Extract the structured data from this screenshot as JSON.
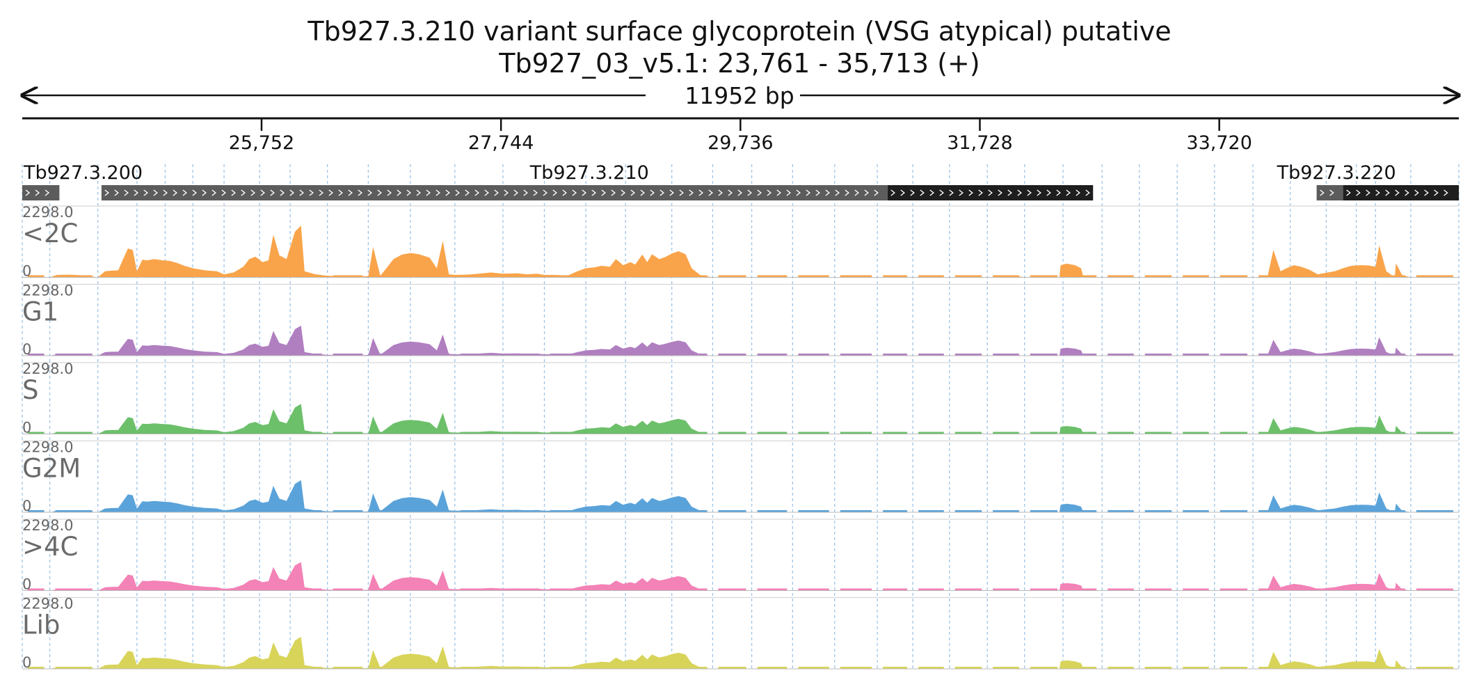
{
  "chart_data": {
    "type": "area",
    "title": "Tb927.3.210  variant surface glycoprotein (VSG  atypical)  putative",
    "subtitle": "Tb927_03_v5.1: 23,761 - 35,713 (+)",
    "span_label": "11952 bp",
    "x_range": [
      23761,
      35713
    ],
    "ticks": [
      {
        "value": 25752,
        "label": "25,752"
      },
      {
        "value": 27744,
        "label": "27,744"
      },
      {
        "value": 29736,
        "label": "29,736"
      },
      {
        "value": 31728,
        "label": "31,728"
      },
      {
        "value": 33720,
        "label": "33,720"
      }
    ],
    "genes": [
      {
        "name": "Tb927.3.200",
        "label_at": 23761,
        "segments": [
          {
            "start": 23761,
            "end": 24070,
            "kind": "utr"
          }
        ]
      },
      {
        "name": "Tb927.3.210",
        "label_at": 28480,
        "segments": [
          {
            "start": 24420,
            "end": 30960,
            "kind": "utr"
          },
          {
            "start": 30960,
            "end": 32670,
            "kind": "cds"
          }
        ]
      },
      {
        "name": "Tb927.3.220",
        "label_at": 34695,
        "segments": [
          {
            "start": 34530,
            "end": 34750,
            "kind": "utr"
          },
          {
            "start": 34750,
            "end": 35713,
            "kind": "cds"
          }
        ]
      }
    ],
    "ymax_label": "2298.0",
    "ymin_label": "0",
    "ylim": [
      0,
      2298
    ],
    "block_boundaries": [
      23761,
      23990,
      24390,
      24715,
      24950,
      25180,
      25440,
      25735,
      25990,
      26300,
      26640,
      26990,
      27360,
      27760,
      28105,
      28450,
      28780,
      29165,
      29505,
      29830,
      30170,
      30520,
      30875,
      31170,
      31475,
      31790,
      32100,
      32420,
      32745,
      33055,
      33370,
      33680,
      34000,
      34310,
      34610,
      34860,
      35020,
      35313,
      35713
    ],
    "profile": [
      [
        23761,
        0
      ],
      [
        23990,
        0
      ],
      [
        24050,
        80
      ],
      [
        24150,
        90
      ],
      [
        24240,
        70
      ],
      [
        24310,
        50
      ],
      [
        24390,
        0
      ],
      [
        24450,
        200
      ],
      [
        24500,
        220
      ],
      [
        24560,
        230
      ],
      [
        24600,
        600
      ],
      [
        24640,
        950
      ],
      [
        24680,
        900
      ],
      [
        24715,
        200
      ],
      [
        24760,
        580
      ],
      [
        24800,
        560
      ],
      [
        24860,
        600
      ],
      [
        24930,
        560
      ],
      [
        24990,
        540
      ],
      [
        25050,
        470
      ],
      [
        25110,
        380
      ],
      [
        25180,
        300
      ],
      [
        25280,
        230
      ],
      [
        25380,
        200
      ],
      [
        25440,
        100
      ],
      [
        25520,
        160
      ],
      [
        25600,
        350
      ],
      [
        25650,
        600
      ],
      [
        25700,
        680
      ],
      [
        25760,
        500
      ],
      [
        25810,
        560
      ],
      [
        25850,
        1400
      ],
      [
        25900,
        720
      ],
      [
        25960,
        600
      ],
      [
        26030,
        1500
      ],
      [
        26080,
        1700
      ],
      [
        26110,
        200
      ],
      [
        26200,
        100
      ],
      [
        26300,
        50
      ],
      [
        26400,
        40
      ],
      [
        26480,
        30
      ],
      [
        26640,
        40
      ],
      [
        26680,
        1000
      ],
      [
        26740,
        50
      ],
      [
        26800,
        350
      ],
      [
        26850,
        600
      ],
      [
        26920,
        750
      ],
      [
        26990,
        800
      ],
      [
        27060,
        760
      ],
      [
        27150,
        650
      ],
      [
        27210,
        300
      ],
      [
        27260,
        1200
      ],
      [
        27310,
        100
      ],
      [
        27360,
        80
      ],
      [
        27460,
        90
      ],
      [
        27560,
        120
      ],
      [
        27660,
        160
      ],
      [
        27760,
        120
      ],
      [
        27880,
        130
      ],
      [
        27960,
        100
      ],
      [
        28040,
        120
      ],
      [
        28105,
        80
      ],
      [
        28200,
        80
      ],
      [
        28300,
        60
      ],
      [
        28380,
        200
      ],
      [
        28450,
        300
      ],
      [
        28520,
        330
      ],
      [
        28580,
        380
      ],
      [
        28650,
        350
      ],
      [
        28700,
        600
      ],
      [
        28760,
        400
      ],
      [
        28820,
        500
      ],
      [
        28860,
        420
      ],
      [
        28920,
        750
      ],
      [
        28960,
        500
      ],
      [
        29000,
        760
      ],
      [
        29060,
        600
      ],
      [
        29100,
        650
      ],
      [
        29165,
        780
      ],
      [
        29220,
        860
      ],
      [
        29280,
        760
      ],
      [
        29330,
        300
      ],
      [
        29400,
        80
      ],
      [
        29505,
        0
      ],
      [
        31950,
        0
      ],
      [
        32030,
        50
      ],
      [
        32100,
        0
      ],
      [
        32390,
        0
      ],
      [
        32400,
        400
      ],
      [
        32450,
        450
      ],
      [
        32520,
        400
      ],
      [
        32570,
        300
      ],
      [
        32590,
        0
      ],
      [
        34120,
        0
      ],
      [
        34170,
        900
      ],
      [
        34230,
        200
      ],
      [
        34280,
        300
      ],
      [
        34340,
        400
      ],
      [
        34400,
        350
      ],
      [
        34470,
        250
      ],
      [
        34540,
        100
      ],
      [
        34610,
        150
      ],
      [
        34680,
        200
      ],
      [
        34750,
        300
      ],
      [
        34820,
        380
      ],
      [
        34900,
        400
      ],
      [
        34960,
        390
      ],
      [
        35020,
        350
      ],
      [
        35050,
        1050
      ],
      [
        35110,
        200
      ],
      [
        35180,
        0
      ],
      [
        35190,
        460
      ],
      [
        35240,
        80
      ],
      [
        35313,
        0
      ],
      [
        35713,
        0
      ]
    ],
    "series": [
      {
        "name": "<2C",
        "color": "#F9A44A",
        "scale": 1.0
      },
      {
        "name": "G1",
        "color": "#B07FC0",
        "scale": 0.58
      },
      {
        "name": "S",
        "color": "#6CC06A",
        "scale": 0.58
      },
      {
        "name": "G2M",
        "color": "#5AA3DA",
        "scale": 0.62
      },
      {
        "name": ">4C",
        "color": "#F382B6",
        "scale": 0.55
      },
      {
        "name": "Lib",
        "color": "#D8D45A",
        "scale": 0.62
      }
    ],
    "grid": true
  }
}
